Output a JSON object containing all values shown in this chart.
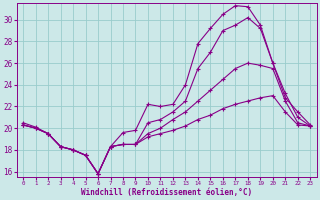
{
  "xlabel": "Windchill (Refroidissement éolien,°C)",
  "bg_color": "#cce8e8",
  "grid_color": "#99cccc",
  "line_color": "#880088",
  "xlim": [
    -0.5,
    23.5
  ],
  "ylim": [
    15.5,
    31.5
  ],
  "yticks": [
    16,
    18,
    20,
    22,
    24,
    26,
    28,
    30
  ],
  "xticks": [
    0,
    1,
    2,
    3,
    4,
    5,
    6,
    7,
    8,
    9,
    10,
    11,
    12,
    13,
    14,
    15,
    16,
    17,
    18,
    19,
    20,
    21,
    22,
    23
  ],
  "series1_x": [
    0,
    1,
    2,
    3,
    4,
    5,
    6,
    7,
    8,
    9,
    10,
    11,
    12,
    13,
    14,
    15,
    16,
    17,
    18,
    19,
    20,
    21,
    22,
    23
  ],
  "series1_y": [
    20.5,
    20.1,
    19.5,
    18.3,
    18.0,
    17.5,
    15.8,
    18.3,
    19.6,
    19.8,
    22.2,
    22.0,
    22.2,
    24.0,
    27.8,
    29.2,
    30.5,
    31.3,
    31.2,
    29.5,
    26.0,
    22.8,
    21.5,
    20.3
  ],
  "series2_x": [
    0,
    1,
    2,
    3,
    4,
    5,
    6,
    7,
    8,
    9,
    10,
    11,
    12,
    13,
    14,
    15,
    16,
    17,
    18,
    19,
    20,
    21,
    22,
    23
  ],
  "series2_y": [
    20.3,
    20.0,
    19.5,
    18.3,
    18.0,
    17.5,
    15.8,
    18.3,
    18.5,
    18.5,
    20.5,
    20.8,
    21.5,
    22.5,
    25.5,
    27.0,
    29.0,
    29.5,
    30.2,
    29.2,
    26.0,
    23.2,
    21.0,
    20.2
  ],
  "series3_x": [
    0,
    1,
    2,
    3,
    4,
    5,
    6,
    7,
    8,
    9,
    10,
    11,
    12,
    13,
    14,
    15,
    16,
    17,
    18,
    19,
    20,
    21,
    22,
    23
  ],
  "series3_y": [
    20.3,
    20.0,
    19.5,
    18.3,
    18.0,
    17.5,
    15.8,
    18.3,
    18.5,
    18.5,
    19.5,
    20.0,
    20.8,
    21.5,
    22.5,
    23.5,
    24.5,
    25.5,
    26.0,
    25.8,
    25.5,
    22.5,
    20.5,
    20.2
  ],
  "series4_x": [
    0,
    1,
    2,
    3,
    4,
    5,
    6,
    7,
    8,
    9,
    10,
    11,
    12,
    13,
    14,
    15,
    16,
    17,
    18,
    19,
    20,
    21,
    22,
    23
  ],
  "series4_y": [
    20.3,
    20.0,
    19.5,
    18.3,
    18.0,
    17.5,
    15.8,
    18.3,
    18.5,
    18.5,
    19.2,
    19.5,
    19.8,
    20.2,
    20.8,
    21.2,
    21.8,
    22.2,
    22.5,
    22.8,
    23.0,
    21.5,
    20.3,
    20.2
  ]
}
